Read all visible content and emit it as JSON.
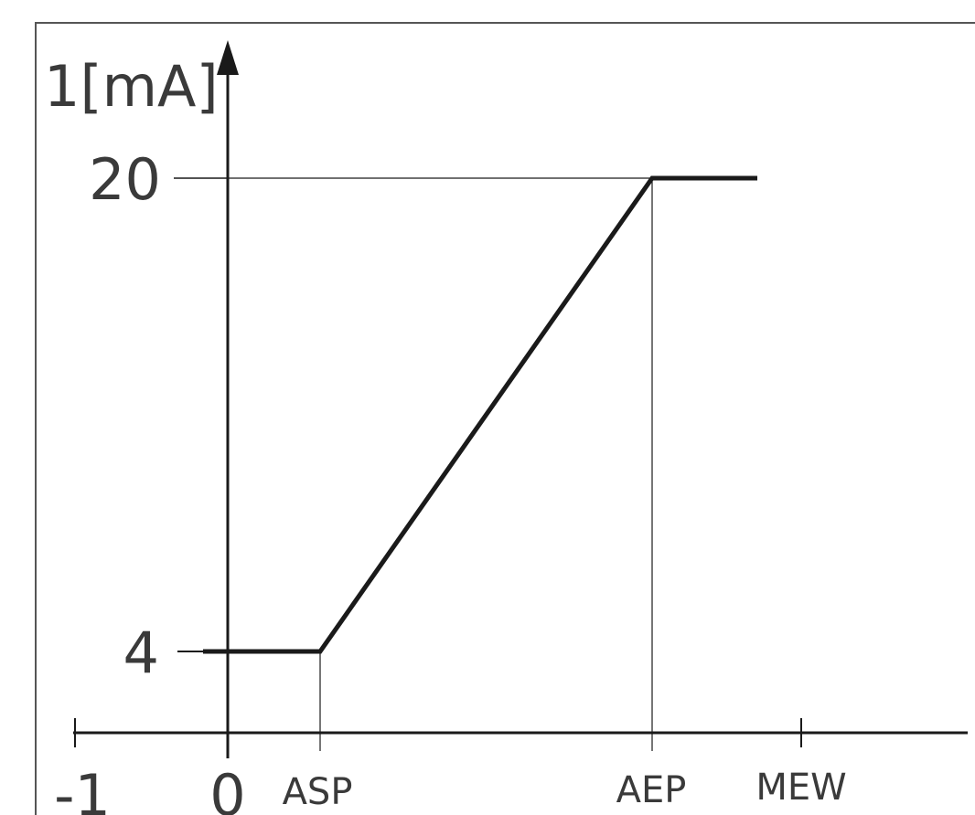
{
  "chart_data": {
    "type": "line",
    "ylabel": "1[mA]",
    "y_ticks": [
      "4",
      "20"
    ],
    "x_ticks": [
      "-1",
      "0",
      "ASP",
      "AEP",
      "MEW"
    ],
    "series": [
      {
        "x": [
          "-0.2",
          "ASP",
          "AEP",
          "1.7"
        ],
        "y": [
          4,
          4,
          20,
          20
        ]
      }
    ],
    "grid": false,
    "legend": "none",
    "colors": {
      "curve": "#1a1a1a",
      "axis": "#1a1a1a",
      "text": "#3a3a3a",
      "border": "#555555"
    }
  }
}
